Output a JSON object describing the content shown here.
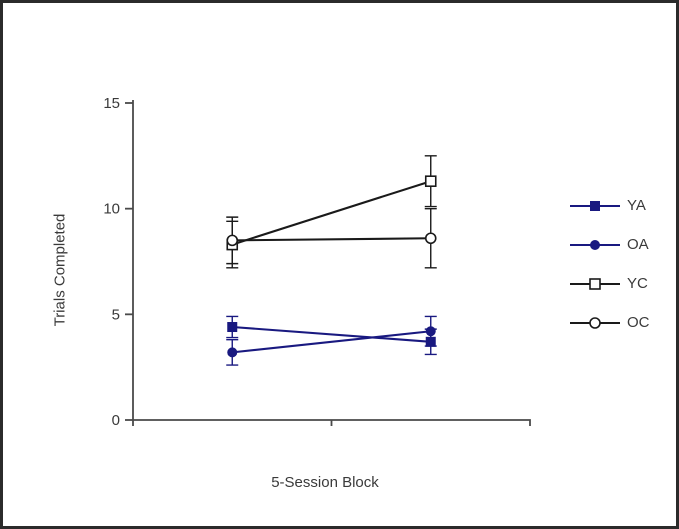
{
  "window": {
    "background": "#ffffff",
    "border_color": "#2b2b2b"
  },
  "colors": {
    "axis": "#4a4a4a",
    "text": "#3a3a3a",
    "navy_series": "#191980",
    "black_series": "#1a1a1a"
  },
  "chart_data": {
    "type": "line",
    "title": "",
    "xlabel": "5-Session Block",
    "ylabel": "Trials Completed",
    "x": [
      1,
      2
    ],
    "x_tick_labels": [],
    "ylim": [
      0,
      15
    ],
    "yticks": [
      0,
      5,
      10,
      15
    ],
    "grid": false,
    "legend_position": "right",
    "error_bars": true,
    "series": [
      {
        "name": "YA",
        "color": "#191980",
        "marker": "filled-square",
        "values": [
          4.4,
          3.7
        ],
        "errors": [
          0.5,
          0.6
        ]
      },
      {
        "name": "OA",
        "color": "#191980",
        "marker": "filled-circle",
        "values": [
          3.2,
          4.2
        ],
        "errors": [
          0.6,
          0.7
        ]
      },
      {
        "name": "YC",
        "color": "#1a1a1a",
        "marker": "open-square",
        "values": [
          8.3,
          11.3
        ],
        "errors": [
          1.1,
          1.2
        ]
      },
      {
        "name": "OC",
        "color": "#1a1a1a",
        "marker": "open-circle",
        "values": [
          8.5,
          8.6
        ],
        "errors": [
          1.1,
          1.4
        ]
      }
    ]
  }
}
